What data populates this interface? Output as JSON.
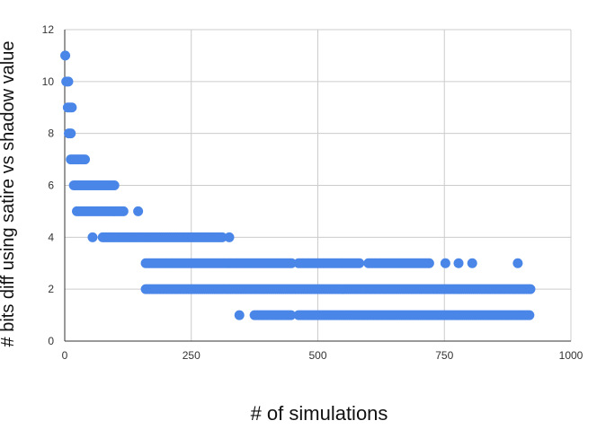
{
  "chart_data": {
    "type": "scatter",
    "title": "",
    "xlabel": "# of simulations",
    "ylabel": "# bits diff using satire vs shadow value",
    "xlim": [
      0,
      1000
    ],
    "ylim": [
      0,
      12
    ],
    "xticks": [
      0,
      250,
      500,
      750,
      1000
    ],
    "yticks": [
      0,
      2,
      4,
      6,
      8,
      10,
      12
    ],
    "grid": true,
    "legend": "none",
    "point_color": "#4a86e8",
    "series": [
      {
        "ranges": [
          {
            "y": 11,
            "x_from": 1,
            "x_to": 4
          },
          {
            "y": 10,
            "x_from": 3,
            "x_to": 8
          },
          {
            "y": 9,
            "x_from": 6,
            "x_to": 16
          },
          {
            "y": 8,
            "x_from": 8,
            "x_to": 12
          },
          {
            "y": 7,
            "x_from": 12,
            "x_to": 42
          },
          {
            "y": 6,
            "x_from": 18,
            "x_to": 100
          },
          {
            "y": 5,
            "x_from": 24,
            "x_to": 118
          },
          {
            "y": 4,
            "x_from": 75,
            "x_to": 312
          },
          {
            "y": 3,
            "x_from": 160,
            "x_to": 450
          },
          {
            "y": 3,
            "x_from": 462,
            "x_to": 582
          },
          {
            "y": 3,
            "x_from": 600,
            "x_to": 720
          },
          {
            "y": 2,
            "x_from": 160,
            "x_to": 920
          },
          {
            "y": 1,
            "x_from": 375,
            "x_to": 450
          },
          {
            "y": 1,
            "x_from": 462,
            "x_to": 920
          }
        ],
        "points": [
          {
            "x": 145,
            "y": 5
          },
          {
            "x": 55,
            "y": 4
          },
          {
            "x": 325,
            "y": 4
          },
          {
            "x": 345,
            "y": 1
          },
          {
            "x": 752,
            "y": 3
          },
          {
            "x": 778,
            "y": 3
          },
          {
            "x": 805,
            "y": 3
          },
          {
            "x": 895,
            "y": 3
          }
        ]
      }
    ]
  }
}
